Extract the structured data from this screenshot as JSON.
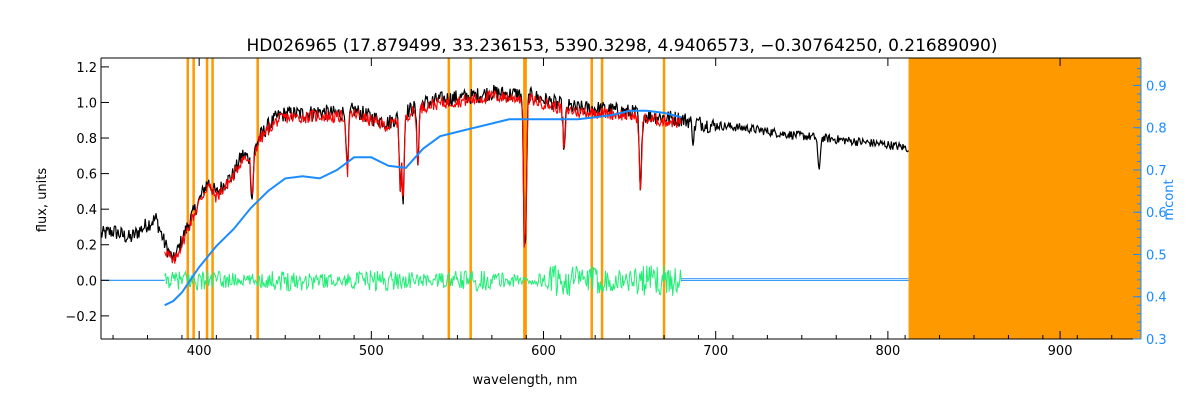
{
  "chart_data": {
    "type": "line",
    "title": "HD026965    (17.879499, 33.236153, 5390.3298, 4.9406573, −0.30764250, 0.21689090)",
    "xlabel": "wavelength, nm",
    "ylabel": "flux, units",
    "y2label": "mcont",
    "xlim": [
      343,
      947
    ],
    "ylim": [
      -0.33,
      1.25
    ],
    "y2lim": [
      0.3,
      0.965
    ],
    "xticks": [
      400,
      500,
      600,
      700,
      800,
      900
    ],
    "yticks": [
      -0.2,
      0.0,
      0.2,
      0.4,
      0.6,
      0.8,
      1.0,
      1.2
    ],
    "y2ticks": [
      0.3,
      0.4,
      0.5,
      0.6,
      0.7,
      0.8,
      0.9
    ],
    "colors": {
      "observed": "#000000",
      "model": "#ff0000",
      "residual": "#22ee77",
      "continuum": "#1a8cff",
      "mask": "#ff9900",
      "yellow": "#ffff00"
    },
    "masked_lines_nm": [
      393.4,
      396.8,
      404.6,
      407.8,
      434.0,
      545.0,
      557.7,
      588.9,
      589.6,
      628.0,
      634.0,
      670.0
    ],
    "masked_band_nm": [
      812,
      947
    ],
    "series": [
      {
        "key": "observed",
        "x": [
          343,
          350,
          360,
          370,
          375,
          380,
          385,
          390,
          395,
          400,
          405,
          410,
          415,
          420,
          425,
          430,
          435,
          440,
          445,
          450,
          460,
          470,
          480,
          490,
          500,
          510,
          520,
          530,
          540,
          550,
          560,
          570,
          580,
          590,
          600,
          610,
          620,
          630,
          640,
          650,
          660,
          670,
          680,
          700,
          720,
          740,
          760,
          780,
          800,
          812
        ],
        "y": [
          0.27,
          0.29,
          0.25,
          0.33,
          0.36,
          0.22,
          0.12,
          0.24,
          0.36,
          0.46,
          0.57,
          0.5,
          0.56,
          0.61,
          0.72,
          0.7,
          0.82,
          0.88,
          0.93,
          0.95,
          0.95,
          0.96,
          0.95,
          0.97,
          0.93,
          0.9,
          0.96,
          1.01,
          1.03,
          1.04,
          1.05,
          1.07,
          1.06,
          1.06,
          1.03,
          1.0,
          0.98,
          0.98,
          0.97,
          0.96,
          0.94,
          0.93,
          0.92,
          0.88,
          0.86,
          0.83,
          0.81,
          0.79,
          0.77,
          0.75
        ]
      },
      {
        "key": "model",
        "x": [
          380,
          385,
          390,
          395,
          400,
          405,
          410,
          415,
          420,
          425,
          430,
          435,
          440,
          445,
          450,
          460,
          470,
          480,
          490,
          500,
          510,
          520,
          530,
          540,
          550,
          560,
          570,
          580,
          590,
          600,
          610,
          620,
          630,
          640,
          650,
          660,
          670,
          680
        ],
        "y": [
          0.19,
          0.11,
          0.22,
          0.34,
          0.45,
          0.55,
          0.48,
          0.54,
          0.6,
          0.7,
          0.69,
          0.8,
          0.86,
          0.91,
          0.93,
          0.93,
          0.94,
          0.93,
          0.95,
          0.91,
          0.88,
          0.94,
          0.99,
          1.01,
          1.02,
          1.03,
          1.05,
          1.04,
          1.04,
          1.01,
          0.98,
          0.96,
          0.96,
          0.95,
          0.94,
          0.92,
          0.91,
          0.9
        ]
      },
      {
        "key": "continuum",
        "axis": "y2",
        "x": [
          380,
          385,
          390,
          395,
          400,
          410,
          420,
          430,
          440,
          450,
          460,
          470,
          480,
          490,
          500,
          510,
          520,
          530,
          540,
          550,
          560,
          570,
          580,
          590,
          600,
          610,
          620,
          630,
          640,
          650,
          660,
          670,
          680
        ],
        "y": [
          0.38,
          0.39,
          0.41,
          0.44,
          0.47,
          0.52,
          0.56,
          0.61,
          0.65,
          0.68,
          0.685,
          0.68,
          0.7,
          0.73,
          0.73,
          0.71,
          0.705,
          0.75,
          0.78,
          0.79,
          0.8,
          0.81,
          0.82,
          0.82,
          0.82,
          0.82,
          0.82,
          0.825,
          0.83,
          0.84,
          0.84,
          0.835,
          0.825
        ]
      },
      {
        "key": "continuum_flat",
        "x": [
          343,
          380,
          680,
          812
        ],
        "y": [
          0.0,
          0.0,
          0.0,
          0.0
        ]
      }
    ],
    "absorption_features_nm": [
      {
        "x": 430.8,
        "depth": 0.25
      },
      {
        "x": 486.1,
        "depth": 0.35
      },
      {
        "x": 516.9,
        "depth": 0.42
      },
      {
        "x": 518.4,
        "depth": 0.5
      },
      {
        "x": 527.0,
        "depth": 0.3
      },
      {
        "x": 589.0,
        "depth": 0.9
      },
      {
        "x": 589.6,
        "depth": 0.8
      },
      {
        "x": 612.0,
        "depth": 0.25
      },
      {
        "x": 656.3,
        "depth": 0.45
      },
      {
        "x": 760.0,
        "depth": 0.2
      },
      {
        "x": 687.0,
        "depth": 0.1
      }
    ]
  }
}
